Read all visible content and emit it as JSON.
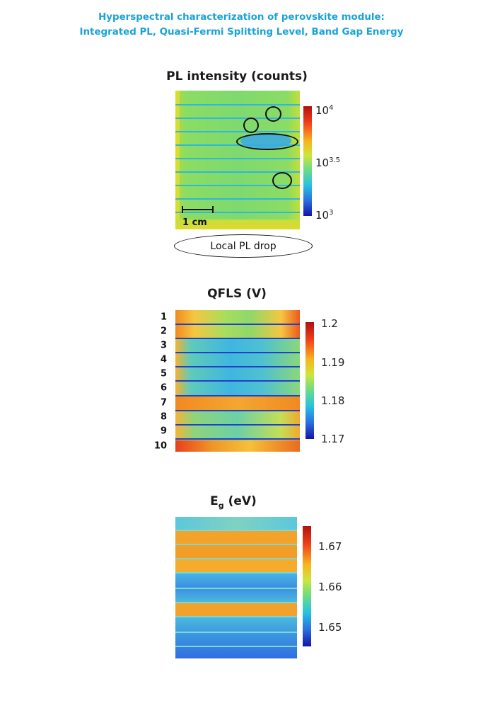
{
  "title": {
    "line1": "Hyperspectral characterization of perovskite module:",
    "line2": "Integrated PL, Quasi-Fermi Splitting Level, Band Gap Energy"
  },
  "colors": {
    "title": "#1aa3d6",
    "map_green": "#8fdc5a",
    "map_cyan": "#36c6d8",
    "map_orange": "#f6a21d",
    "map_red": "#e8401c",
    "map_blue": "#2f6ee0"
  },
  "panels": {
    "pl": {
      "title": "PL intensity (counts)",
      "colorbar": {
        "ticks": [
          {
            "base": "10",
            "exp": "4"
          },
          {
            "base": "10",
            "exp": "3.5"
          },
          {
            "base": "10",
            "exp": "3"
          }
        ]
      },
      "scalebar_label": "1 cm",
      "legend_label": "Local PL drop"
    },
    "qfls": {
      "title": "QFLS (V)",
      "colorbar": {
        "ticks": [
          "1.2",
          "1.19",
          "1.18",
          "1.17"
        ]
      },
      "row_labels": [
        "1",
        "2",
        "3",
        "4",
        "5",
        "6",
        "7",
        "8",
        "9",
        "10"
      ]
    },
    "eg": {
      "title_main": "E",
      "title_sub": "g",
      "title_rest": " (eV)",
      "colorbar": {
        "ticks": [
          "1.67",
          "1.66",
          "1.65"
        ]
      }
    }
  }
}
